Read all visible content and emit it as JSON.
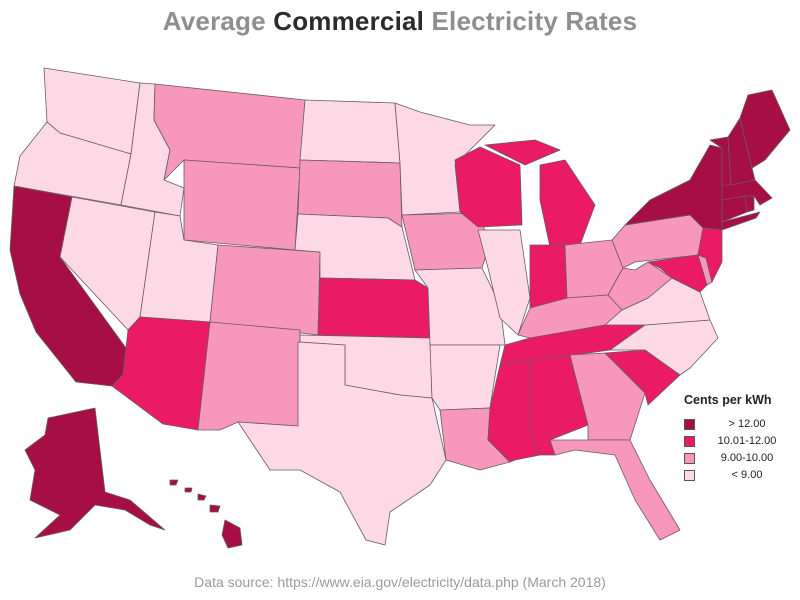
{
  "title": {
    "prefix": "Average ",
    "highlight": "Commercial",
    "suffix": " Electricity Rates"
  },
  "legend": {
    "title": "Cents per kWh",
    "items": [
      {
        "label": "> 12.00",
        "color": "#a50f44"
      },
      {
        "label": "10.01-12.00",
        "color": "#ea1a65"
      },
      {
        "label": "9.00-10.00",
        "color": "#f797bb"
      },
      {
        "label": "< 9.00",
        "color": "#fdd9e6"
      }
    ]
  },
  "map_data": {
    "regions": {
      "ME": 3,
      "NH": 3,
      "VT": 3,
      "MA": 3,
      "CT": 3,
      "RI": 3,
      "NY": 3,
      "CA": 3,
      "AK": 3,
      "HI": 3,
      "NJ": 2,
      "MD": 2,
      "DE": 1,
      "WI": 2,
      "MI": 2,
      "IN": 2,
      "KS": 2,
      "AZ": 2,
      "TN": 2,
      "MS": 2,
      "AL": 2,
      "SC": 2,
      "MT": 1,
      "WY": 1,
      "SD": 1,
      "CO": 1,
      "NM": 1,
      "IA": 1,
      "OH": 1,
      "PA": 1,
      "WV": 1,
      "KY": 1,
      "GA": 1,
      "FL": 1,
      "LA": 1,
      "WA": 0,
      "OR": 0,
      "ID": 0,
      "NV": 0,
      "UT": 0,
      "ND": 0,
      "NE": 0,
      "MN": 0,
      "IL": 0,
      "MO": 0,
      "OK": 0,
      "TX": 0,
      "AR": 0,
      "VA": 0,
      "NC": 0
    }
  },
  "source": "Data source: https://www.eia.gov/electricity/data.php (March 2018)"
}
